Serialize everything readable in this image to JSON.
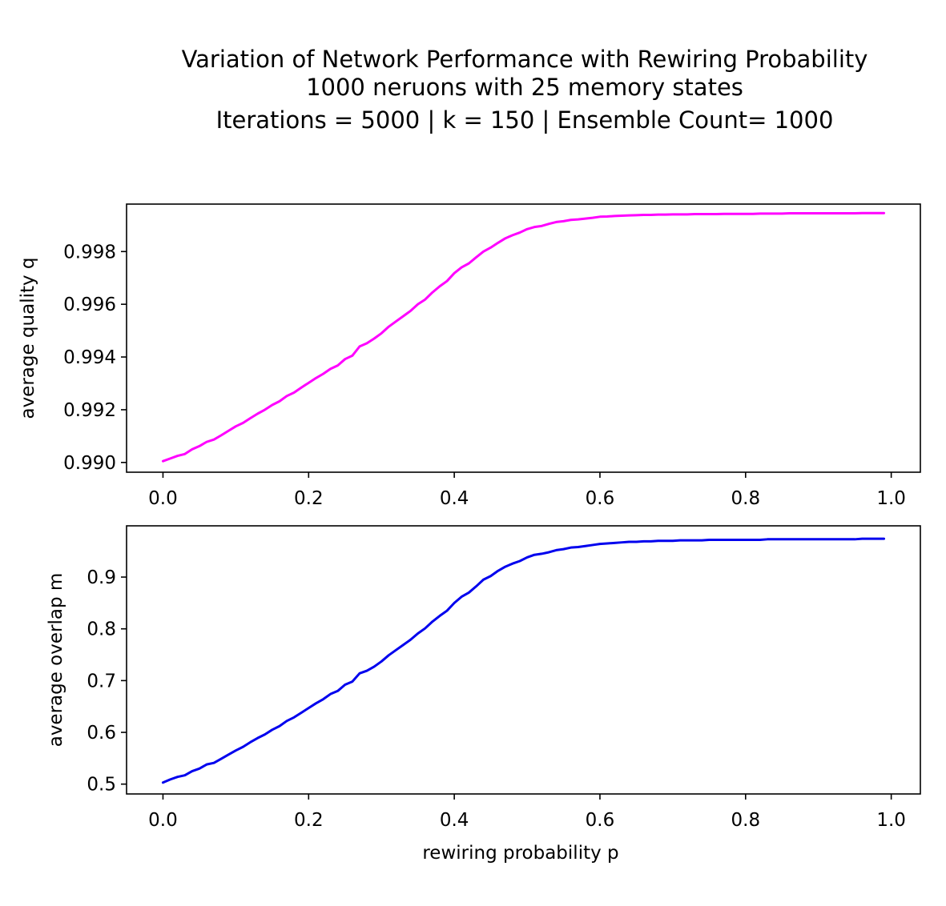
{
  "figure": {
    "title_lines": [
      "Variation of Network Performance with Rewiring Probability",
      "1000 neruons with 25 memory states",
      "Iterations = 5000 |  k = 150 | Ensemble Count= 1000"
    ]
  },
  "chart_data": [
    {
      "type": "line",
      "title": "",
      "xlabel": "",
      "ylabel": "average quality q",
      "xlim": [
        -0.05,
        1.04
      ],
      "ylim": [
        0.98963,
        0.9998
      ],
      "xticks": [
        "0.0",
        "0.2",
        "0.4",
        "0.6",
        "0.8",
        "1.0"
      ],
      "yticks": [
        "0.990",
        "0.992",
        "0.994",
        "0.996",
        "0.998"
      ],
      "grid": false,
      "series": [
        {
          "color": "#ff00ff",
          "x": [
            0.0,
            0.01,
            0.02,
            0.03,
            0.04,
            0.05,
            0.06,
            0.07,
            0.08,
            0.09,
            0.1,
            0.11,
            0.12,
            0.13,
            0.14,
            0.15,
            0.16,
            0.17,
            0.18,
            0.19,
            0.2,
            0.21,
            0.22,
            0.23,
            0.24,
            0.25,
            0.26,
            0.27,
            0.28,
            0.29,
            0.3,
            0.31,
            0.32,
            0.33,
            0.34,
            0.35,
            0.36,
            0.37,
            0.38,
            0.39,
            0.4,
            0.41,
            0.42,
            0.43,
            0.44,
            0.45,
            0.46,
            0.47,
            0.48,
            0.49,
            0.5,
            0.51,
            0.52,
            0.53,
            0.54,
            0.55,
            0.56,
            0.57,
            0.58,
            0.59,
            0.6,
            0.61,
            0.62,
            0.63,
            0.64,
            0.65,
            0.66,
            0.67,
            0.68,
            0.69,
            0.7,
            0.71,
            0.72,
            0.73,
            0.74,
            0.75,
            0.76,
            0.77,
            0.78,
            0.79,
            0.8,
            0.81,
            0.82,
            0.83,
            0.84,
            0.85,
            0.86,
            0.87,
            0.88,
            0.89,
            0.9,
            0.91,
            0.92,
            0.93,
            0.94,
            0.95,
            0.96,
            0.97,
            0.98,
            0.99
          ],
          "values": [
            0.99005,
            0.99015,
            0.99025,
            0.99032,
            0.9905,
            0.99062,
            0.99078,
            0.99087,
            0.99103,
            0.9912,
            0.99137,
            0.9915,
            0.99168,
            0.99185,
            0.992,
            0.99218,
            0.99232,
            0.99252,
            0.99265,
            0.99284,
            0.99302,
            0.9932,
            0.99336,
            0.99355,
            0.99368,
            0.99392,
            0.99405,
            0.9944,
            0.99452,
            0.9947,
            0.9949,
            0.99515,
            0.99535,
            0.99555,
            0.99575,
            0.996,
            0.99618,
            0.99645,
            0.99668,
            0.99688,
            0.99718,
            0.9974,
            0.99755,
            0.99778,
            0.998,
            0.99815,
            0.99833,
            0.9985,
            0.99862,
            0.99872,
            0.99885,
            0.99893,
            0.99897,
            0.99905,
            0.99912,
            0.99915,
            0.9992,
            0.99922,
            0.99925,
            0.99928,
            0.99932,
            0.99933,
            0.99935,
            0.99936,
            0.99937,
            0.99938,
            0.99939,
            0.99939,
            0.9994,
            0.9994,
            0.99941,
            0.99941,
            0.99941,
            0.99942,
            0.99942,
            0.99942,
            0.99942,
            0.99943,
            0.99943,
            0.99943,
            0.99943,
            0.99943,
            0.99944,
            0.99944,
            0.99944,
            0.99944,
            0.99945,
            0.99945,
            0.99945,
            0.99945,
            0.99945,
            0.99945,
            0.99945,
            0.99945,
            0.99945,
            0.99945,
            0.99946,
            0.99946,
            0.99946,
            0.99946
          ]
        }
      ]
    },
    {
      "type": "line",
      "title": "",
      "xlabel": "rewiring probability p",
      "ylabel": "average overlap m",
      "xlim": [
        -0.05,
        1.04
      ],
      "ylim": [
        0.481,
        0.999
      ],
      "xticks": [
        "0.0",
        "0.2",
        "0.4",
        "0.6",
        "0.8",
        "1.0"
      ],
      "yticks": [
        "0.5",
        "0.6",
        "0.7",
        "0.8",
        "0.9"
      ],
      "grid": false,
      "series": [
        {
          "color": "#0000ee",
          "x": [
            0.0,
            0.01,
            0.02,
            0.03,
            0.04,
            0.05,
            0.06,
            0.07,
            0.08,
            0.09,
            0.1,
            0.11,
            0.12,
            0.13,
            0.14,
            0.15,
            0.16,
            0.17,
            0.18,
            0.19,
            0.2,
            0.21,
            0.22,
            0.23,
            0.24,
            0.25,
            0.26,
            0.27,
            0.28,
            0.29,
            0.3,
            0.31,
            0.32,
            0.33,
            0.34,
            0.35,
            0.36,
            0.37,
            0.38,
            0.39,
            0.4,
            0.41,
            0.42,
            0.43,
            0.44,
            0.45,
            0.46,
            0.47,
            0.48,
            0.49,
            0.5,
            0.51,
            0.52,
            0.53,
            0.54,
            0.55,
            0.56,
            0.57,
            0.58,
            0.59,
            0.6,
            0.61,
            0.62,
            0.63,
            0.64,
            0.65,
            0.66,
            0.67,
            0.68,
            0.69,
            0.7,
            0.71,
            0.72,
            0.73,
            0.74,
            0.75,
            0.76,
            0.77,
            0.78,
            0.79,
            0.8,
            0.81,
            0.82,
            0.83,
            0.84,
            0.85,
            0.86,
            0.87,
            0.88,
            0.89,
            0.9,
            0.91,
            0.92,
            0.93,
            0.94,
            0.95,
            0.96,
            0.97,
            0.98,
            0.99
          ],
          "values": [
            0.503,
            0.509,
            0.514,
            0.517,
            0.525,
            0.53,
            0.538,
            0.541,
            0.549,
            0.557,
            0.565,
            0.572,
            0.581,
            0.589,
            0.596,
            0.605,
            0.612,
            0.622,
            0.629,
            0.638,
            0.647,
            0.656,
            0.664,
            0.674,
            0.68,
            0.692,
            0.698,
            0.714,
            0.719,
            0.727,
            0.737,
            0.749,
            0.759,
            0.769,
            0.779,
            0.791,
            0.801,
            0.814,
            0.825,
            0.835,
            0.85,
            0.862,
            0.87,
            0.882,
            0.895,
            0.902,
            0.912,
            0.92,
            0.926,
            0.931,
            0.938,
            0.943,
            0.945,
            0.948,
            0.952,
            0.954,
            0.957,
            0.958,
            0.96,
            0.962,
            0.964,
            0.965,
            0.966,
            0.967,
            0.968,
            0.968,
            0.969,
            0.969,
            0.97,
            0.97,
            0.97,
            0.971,
            0.971,
            0.971,
            0.971,
            0.972,
            0.972,
            0.972,
            0.972,
            0.972,
            0.972,
            0.972,
            0.972,
            0.973,
            0.973,
            0.973,
            0.973,
            0.973,
            0.973,
            0.973,
            0.973,
            0.973,
            0.973,
            0.973,
            0.973,
            0.973,
            0.974,
            0.974,
            0.974,
            0.974
          ]
        }
      ]
    }
  ]
}
